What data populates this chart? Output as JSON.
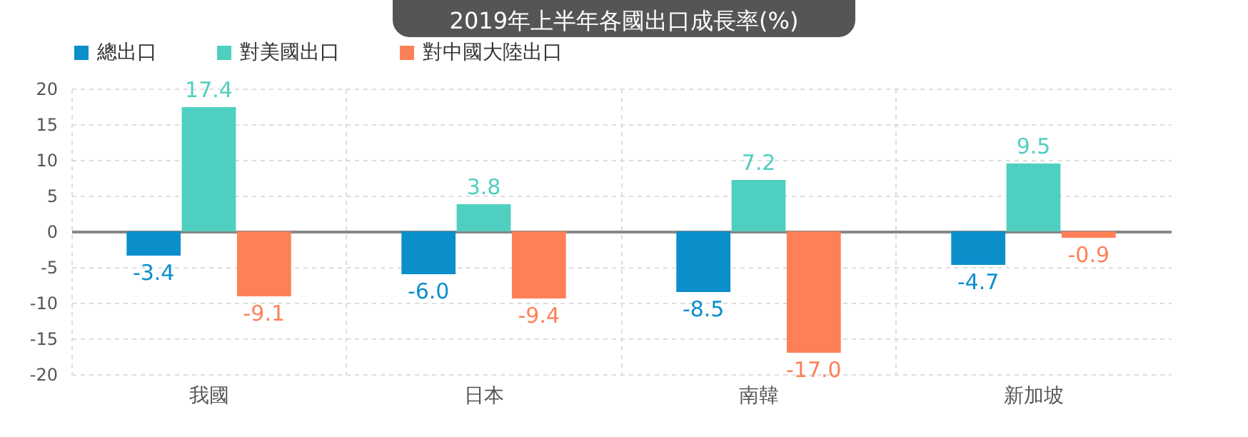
{
  "chart_data": {
    "type": "bar",
    "title": "2019年上半年各國出口成長率(%)",
    "categories": [
      "我國",
      "日本",
      "南韓",
      "新加坡"
    ],
    "series": [
      {
        "name": "總出口",
        "color": "#0a8fcb",
        "values": [
          -3.4,
          -6.0,
          -8.5,
          -4.7
        ],
        "value_labels": [
          "-3.4",
          "-6.0",
          "-8.5",
          "-4.7"
        ]
      },
      {
        "name": "對美國出口",
        "color": "#4fcfbf",
        "values": [
          17.4,
          3.8,
          7.2,
          9.5
        ],
        "value_labels": [
          "17.4",
          "3.8",
          "7.2",
          "9.5"
        ]
      },
      {
        "name": "對中國大陸出口",
        "color": "#fe8057",
        "values": [
          -9.1,
          -9.4,
          -17.0,
          -0.9
        ],
        "value_labels": [
          "-9.1",
          "-9.4",
          "-17.0",
          "-0.9"
        ]
      }
    ],
    "ylim": [
      -20,
      20
    ],
    "yticks": [
      -20,
      -15,
      -10,
      -5,
      0,
      5,
      10,
      15,
      20
    ],
    "grid": true,
    "legend": "top",
    "data_labels": true
  }
}
